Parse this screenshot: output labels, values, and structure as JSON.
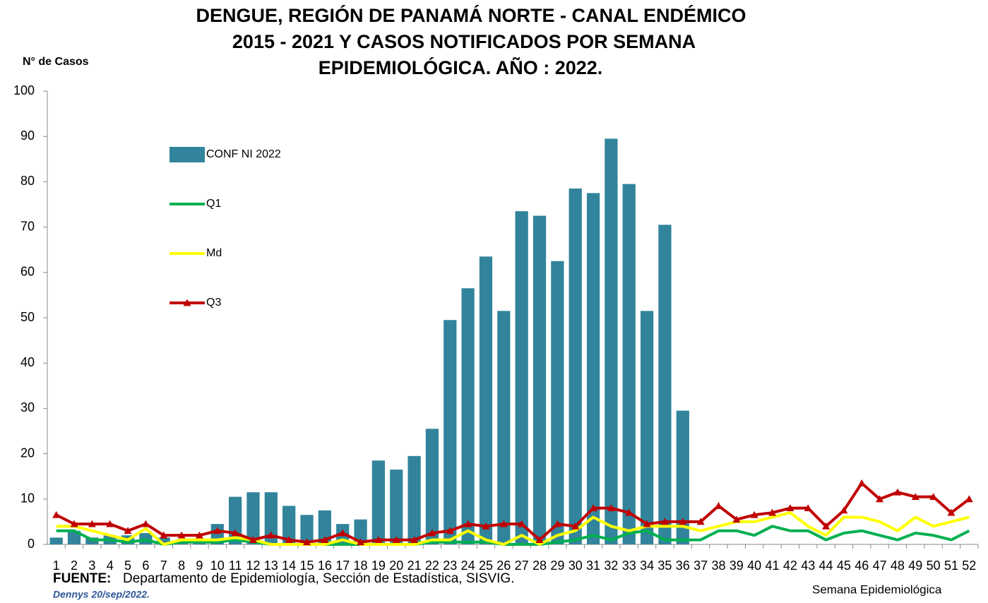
{
  "chart_data": {
    "type": "bar-line",
    "title": [
      "DENGUE, REGIÓN DE PANAMÁ NORTE - CANAL ENDÉMICO",
      "2015 - 2021 Y  CASOS NOTIFICADOS POR SEMANA",
      "EPIDEMIOLÓGICA. AÑO : 2022."
    ],
    "y_label": "N° de Casos",
    "x_label": "Semana Epidemiológica",
    "source_label": "FUENTE:",
    "source_text": "Departamento de Epidemiología, Sección de Estadística, SISVIG.",
    "author": "Dennys  20/sep/2022.",
    "categories": [
      "1",
      "2",
      "3",
      "4",
      "5",
      "6",
      "7",
      "8",
      "9",
      "10",
      "11",
      "12",
      "13",
      "14",
      "15",
      "16",
      "17",
      "18",
      "19",
      "20",
      "21",
      "22",
      "23",
      "24",
      "25",
      "26",
      "27",
      "28",
      "29",
      "30",
      "31",
      "32",
      "33",
      "34",
      "35",
      "36",
      "37",
      "38",
      "39",
      "40",
      "41",
      "42",
      "43",
      "44",
      "45",
      "46",
      "47",
      "48",
      "49",
      "50",
      "51",
      "52"
    ],
    "ylim": [
      0,
      100
    ],
    "yticks": [
      0,
      10,
      20,
      30,
      40,
      50,
      60,
      70,
      80,
      90,
      100
    ],
    "grid": false,
    "series": [
      {
        "name": "CONF NI 2022",
        "kind": "bar",
        "color": "#31849b",
        "values": [
          1.5,
          3,
          1.5,
          2,
          2,
          2.5,
          1.5,
          1,
          1,
          4.5,
          10.5,
          11.5,
          11.5,
          8.5,
          6.5,
          7.5,
          4.5,
          5.5,
          18.5,
          16.5,
          19.5,
          25.5,
          49.5,
          56.5,
          63.5,
          51.5,
          73.5,
          72.5,
          62.5,
          78.5,
          77.5,
          89.5,
          79.5,
          51.5,
          70.5,
          29.5,
          null,
          null,
          null,
          null,
          null,
          null,
          null,
          null,
          null,
          null,
          null,
          null,
          null,
          null,
          null,
          null
        ]
      },
      {
        "name": "Q1",
        "kind": "line",
        "color": "#00b050",
        "values": [
          3,
          3,
          1,
          1,
          0.5,
          1,
          0,
          0.5,
          0.5,
          0.5,
          1,
          0.5,
          0,
          0,
          0,
          0,
          0,
          0,
          0,
          0,
          0,
          0.5,
          0.5,
          0.5,
          0.5,
          0,
          0,
          0,
          0.5,
          1,
          2,
          1,
          2.5,
          3,
          1,
          1,
          1,
          3,
          3,
          2,
          4,
          3,
          3,
          1,
          2.5,
          3,
          2,
          1,
          2.5,
          2,
          1,
          3
        ]
      },
      {
        "name": "Md",
        "kind": "line",
        "color": "#ffff00",
        "values": [
          4,
          4,
          3,
          2,
          1,
          3.5,
          0,
          1,
          1,
          1,
          1.5,
          1,
          0,
          0,
          0,
          0,
          1,
          0,
          0,
          0,
          0,
          1,
          1,
          3,
          1,
          0,
          2,
          0,
          2,
          3,
          6,
          4,
          3,
          4,
          4,
          4,
          3,
          4,
          5,
          5,
          6,
          7,
          4,
          2,
          6,
          6,
          5,
          3,
          6,
          4,
          5,
          6
        ]
      },
      {
        "name": "Q3",
        "kind": "line",
        "marker": "triangle",
        "color": "#c00000",
        "values": [
          6.5,
          4.5,
          4.5,
          4.5,
          3,
          4.5,
          2,
          2,
          2,
          3,
          2.5,
          1,
          2,
          1,
          0.5,
          1,
          2.5,
          0.5,
          1,
          1,
          1,
          2.5,
          3,
          4.5,
          4,
          4.5,
          4.5,
          1,
          4.5,
          4,
          8,
          8,
          7,
          4.5,
          5,
          5,
          5,
          8.5,
          5.5,
          6.5,
          7,
          8,
          8,
          4,
          7.5,
          13.5,
          10,
          11.5,
          10.5,
          10.5,
          7,
          10
        ]
      }
    ]
  }
}
